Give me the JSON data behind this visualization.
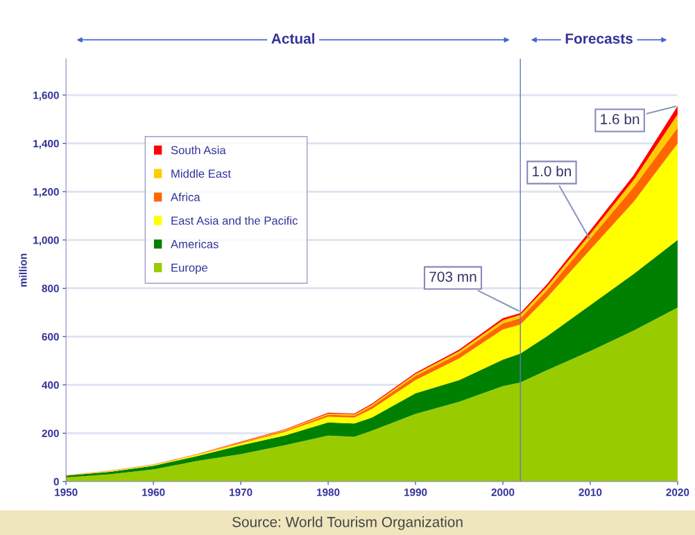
{
  "chart_data": {
    "type": "area",
    "stacked": true,
    "ylabel": "million",
    "x": [
      1950,
      1955,
      1960,
      1965,
      1970,
      1975,
      1980,
      1983,
      1985,
      1990,
      1995,
      2000,
      2002,
      2005,
      2010,
      2015,
      2020
    ],
    "series": [
      {
        "name": "Europe",
        "color": "#99cc00",
        "values": [
          17,
          30,
          50,
          85,
          113,
          150,
          190,
          185,
          210,
          280,
          330,
          395,
          410,
          460,
          540,
          625,
          720
        ]
      },
      {
        "name": "Americas",
        "color": "#008000",
        "values": [
          7,
          10,
          15,
          20,
          37,
          40,
          55,
          55,
          55,
          85,
          90,
          110,
          120,
          140,
          190,
          235,
          280
        ]
      },
      {
        "name": "East Asia and the Pacific",
        "color": "#ffff00",
        "values": [
          1,
          2,
          3,
          5,
          8,
          15,
          23,
          25,
          35,
          55,
          90,
          125,
          120,
          160,
          230,
          300,
          400
        ]
      },
      {
        "name": "Africa",
        "color": "#ff6600",
        "values": [
          1,
          1,
          1,
          2,
          3,
          5,
          8,
          8,
          12,
          17,
          20,
          25,
          26,
          30,
          45,
          60,
          65
        ]
      },
      {
        "name": "Middle East",
        "color": "#ffcc00",
        "values": [
          0,
          1,
          1,
          1,
          2,
          3,
          5,
          5,
          6,
          8,
          10,
          13,
          14,
          15,
          20,
          30,
          55
        ]
      },
      {
        "name": "South Asia",
        "color": "#ff0000",
        "values": [
          0,
          1,
          1,
          1,
          2,
          2,
          4,
          3,
          4,
          5,
          6,
          8,
          7,
          10,
          15,
          20,
          35
        ]
      }
    ],
    "xlim": [
      1950,
      2020
    ],
    "ylim": [
      0,
      1750
    ],
    "xticks": [
      1950,
      1960,
      1970,
      1980,
      1990,
      2000,
      2010,
      2020
    ],
    "yticks": [
      0,
      {
        "value": 200,
        "label": "200"
      },
      {
        "value": 400,
        "label": "400"
      },
      {
        "value": 600,
        "label": "600"
      },
      {
        "value": 800,
        "label": "800"
      },
      {
        "value": 1000,
        "label": "1,000"
      },
      {
        "value": 1200,
        "label": "1,200"
      },
      {
        "value": 1400,
        "label": "1,400"
      },
      {
        "value": 1600,
        "label": "1,600"
      }
    ],
    "ref_lines": [
      {
        "axis": "x",
        "value": 2002,
        "color": "#6677bb"
      }
    ],
    "annotations": [
      "Actual",
      "Forecasts",
      {
        "text": "703 mn",
        "x": 2002,
        "y": 703
      },
      {
        "text": "1.0 bn",
        "x": 2010,
        "y": 1000
      },
      {
        "text": "1.6 bn",
        "x": 2020,
        "y": 1555
      },
      "Source: World Tourism Organization"
    ],
    "grid": "y",
    "legend": "top left"
  }
}
